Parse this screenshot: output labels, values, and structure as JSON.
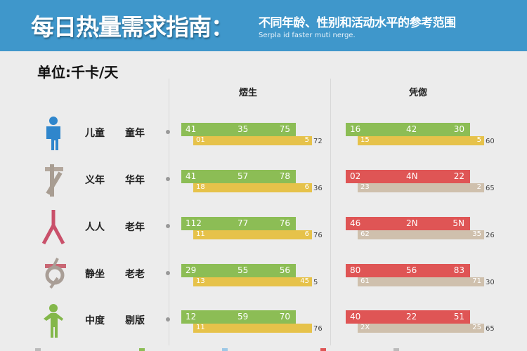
{
  "header": {
    "title": "每日热量需求指南：",
    "subtitle": "不同年龄、性别和活动水平的参考范围",
    "subtitle_en": "Serpla id faster muti nerge."
  },
  "unit": "单位:千卡/天",
  "columns": [
    "熤生",
    "凭偬"
  ],
  "colors": {
    "header": "#3f97cb",
    "green": "#8cbd55",
    "yellow": "#e6c24a",
    "red": "#df5555",
    "beige": "#cfc0ad"
  },
  "rows": [
    {
      "icon": "person-blue-icon",
      "label1": "儿童",
      "label2": "童年",
      "left": {
        "top": [
          "41",
          "35",
          "75"
        ],
        "bottom": [
          "01",
          "5"
        ],
        "tail": "72"
      },
      "right": {
        "top": [
          "16",
          "42",
          "30"
        ],
        "bottom": [
          "15",
          "5"
        ],
        "tail": "60"
      }
    },
    {
      "icon": "person-gray-icon",
      "label1": "义年",
      "label2": "华年",
      "left": {
        "top": [
          "41",
          "57",
          "78"
        ],
        "bottom": [
          "18",
          "6"
        ],
        "tail": "36"
      },
      "right": {
        "top": [
          "02",
          "4N",
          "22"
        ],
        "bottom": [
          "23",
          "2"
        ],
        "tail": "65"
      }
    },
    {
      "icon": "person-red-icon",
      "label1": "人人",
      "label2": "老年",
      "left": {
        "top": [
          "112",
          "77",
          "76"
        ],
        "bottom": [
          "11",
          "6"
        ],
        "tail": "76"
      },
      "right": {
        "top": [
          "46",
          "2N",
          "5N"
        ],
        "bottom": [
          "62",
          "35"
        ],
        "tail": "26"
      }
    },
    {
      "icon": "person-gray-red-icon",
      "label1": "静坐",
      "label2": "老老",
      "left": {
        "top": [
          "29",
          "55",
          "56"
        ],
        "bottom": [
          "13",
          "45"
        ],
        "tail": "5"
      },
      "right": {
        "top": [
          "80",
          "56",
          "83"
        ],
        "bottom": [
          "61",
          "71"
        ],
        "tail": "30"
      }
    },
    {
      "icon": "person-green-icon",
      "label1": "中度",
      "label2": "剔版",
      "left": {
        "top": [
          "12",
          "59",
          "70"
        ],
        "bottom": [
          "11",
          ""
        ],
        "tail": "76"
      },
      "right": {
        "top": [
          "40",
          "22",
          "51"
        ],
        "bottom": [
          "2X",
          "25"
        ],
        "tail": "65"
      }
    }
  ]
}
